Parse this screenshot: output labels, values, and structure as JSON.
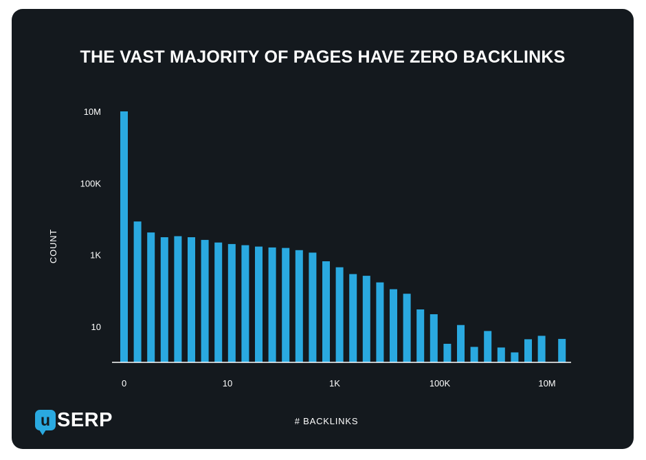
{
  "chart_data": {
    "type": "bar",
    "title": "THE VAST MAJORITY OF PAGES HAVE ZERO BACKLINKS",
    "xlabel": "# BACKLINKS",
    "ylabel": "COUNT",
    "yscale": "log",
    "ylim": [
      1,
      10000000
    ],
    "yticks": [
      {
        "value": 10000000,
        "label": "10M"
      },
      {
        "value": 100000,
        "label": "100K"
      },
      {
        "value": 1000,
        "label": "1K"
      },
      {
        "value": 10,
        "label": "10"
      }
    ],
    "xticks": [
      "0",
      "10",
      "1K",
      "100K",
      "10M"
    ],
    "bar_color": "#2aa9e0",
    "values": [
      10000000,
      8500,
      4200,
      3100,
      3300,
      3100,
      2600,
      2200,
      2000,
      1850,
      1700,
      1600,
      1550,
      1350,
      1150,
      660,
      450,
      290,
      260,
      170,
      110,
      82,
      30,
      22,
      3.3,
      11,
      2.7,
      7.5,
      2.6,
      1.9,
      4.4,
      5.5,
      4.5
    ]
  },
  "logo": {
    "badge": "u",
    "text": "SERP"
  }
}
